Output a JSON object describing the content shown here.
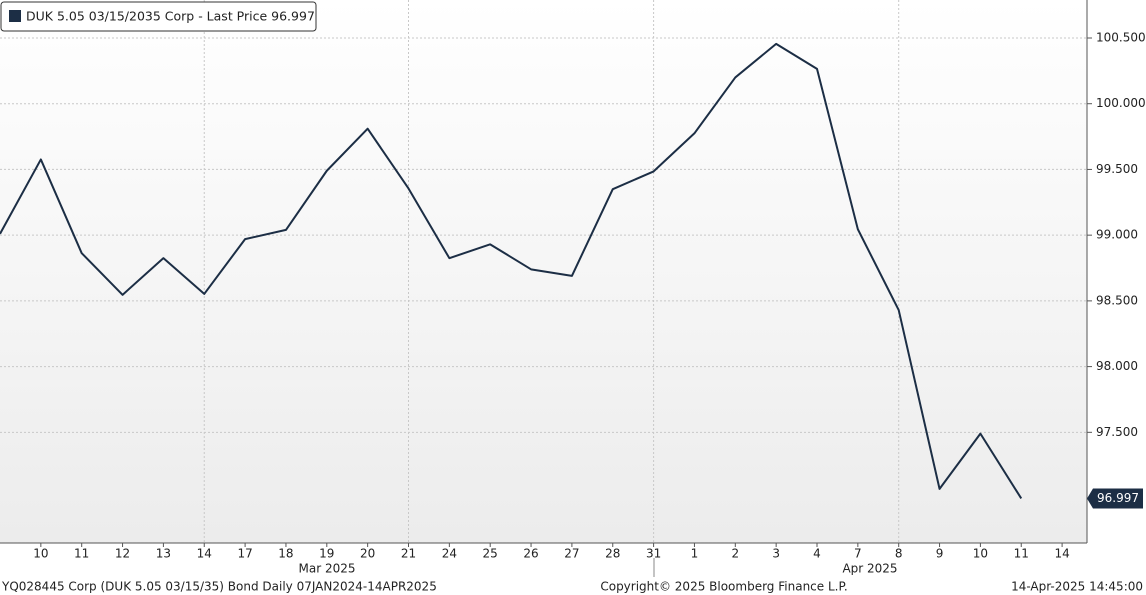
{
  "chart_data": {
    "type": "line",
    "categories": [
      null,
      "10",
      "11",
      "12",
      "13",
      "14",
      "17",
      "18",
      "19",
      "20",
      "21",
      "24",
      "25",
      "26",
      "27",
      "28",
      "31",
      "1",
      "2",
      "3",
      "4",
      "7",
      "8",
      "9",
      "10",
      "11",
      "14"
    ],
    "month_labels": [
      "Mar 2025",
      "Apr 2025"
    ],
    "series": [
      {
        "name": "DUK 5.05 03/15/2035 Corp - Last Price 96.997",
        "color": "#1c2e45",
        "values": [
          99.01,
          99.576,
          98.863,
          98.546,
          98.825,
          98.553,
          98.97,
          99.04,
          99.49,
          99.81,
          99.355,
          98.825,
          98.93,
          98.74,
          98.69,
          99.35,
          99.485,
          99.775,
          100.2,
          100.455,
          100.265,
          99.045,
          98.43,
          97.07,
          97.49,
          96.997,
          null
        ]
      }
    ],
    "ylim": [
      96.658,
      100.789
    ],
    "yticks": [
      {
        "value": 97.5,
        "label": "97.500"
      },
      {
        "value": 98.0,
        "label": "98.000"
      },
      {
        "value": 98.5,
        "label": "98.500"
      },
      {
        "value": 99.0,
        "label": "99.000"
      },
      {
        "value": 99.5,
        "label": "99.500"
      },
      {
        "value": 100.0,
        "label": "100.000"
      },
      {
        "value": 100.5,
        "label": "100.500"
      }
    ],
    "grid": true,
    "footer": {
      "left": "YQ028445 Corp (DUK 5.05 03/15/35) Bond  Daily 07JAN2024-14APR2025",
      "center": "Copyright© 2025 Bloomberg Finance L.P.",
      "right": "14-Apr-2025 14:45:00"
    }
  }
}
